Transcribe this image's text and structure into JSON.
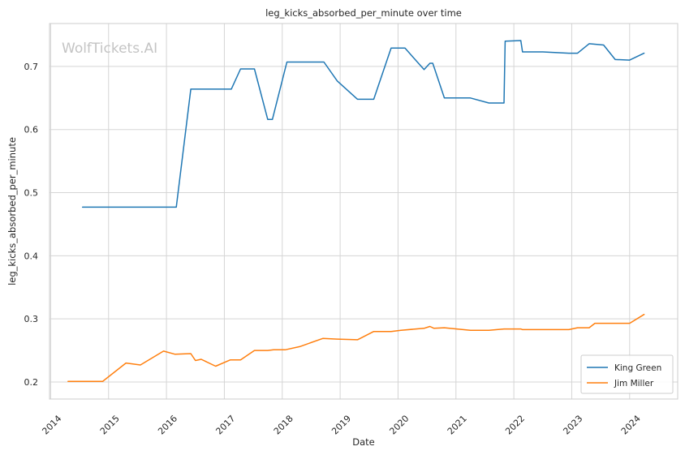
{
  "chart_data": {
    "type": "line",
    "title": "leg_kicks_absorbed_per_minute over time",
    "xlabel": "Date",
    "ylabel": "leg_kicks_absorbed_per_minute",
    "watermark": "WolfTickets.AI",
    "xlim": [
      2013.98,
      2024.83
    ],
    "ylim": [
      0.173,
      0.768
    ],
    "x_ticks": [
      2014,
      2015,
      2016,
      2017,
      2018,
      2019,
      2020,
      2021,
      2022,
      2023,
      2024
    ],
    "x_tick_labels": [
      "2014",
      "2015",
      "2016",
      "2017",
      "2018",
      "2019",
      "2020",
      "2021",
      "2022",
      "2023",
      "2024"
    ],
    "y_ticks": [
      0.2,
      0.3,
      0.4,
      0.5,
      0.6,
      0.7
    ],
    "y_tick_labels": [
      "0.2",
      "0.3",
      "0.4",
      "0.5",
      "0.6",
      "0.7"
    ],
    "grid": true,
    "legend_position": "lower-right",
    "series": [
      {
        "name": "King Green",
        "color": "#1f77b4",
        "x": [
          2014.55,
          2016.17,
          2016.42,
          2017.12,
          2017.28,
          2017.52,
          2017.75,
          2017.83,
          2018.08,
          2018.25,
          2018.72,
          2018.95,
          2019.3,
          2019.58,
          2019.88,
          2020.12,
          2020.45,
          2020.55,
          2020.6,
          2020.8,
          2021.25,
          2021.57,
          2021.83,
          2021.85,
          2022.12,
          2022.15,
          2022.5,
          2022.95,
          2023.1,
          2023.3,
          2023.55,
          2023.75,
          2024.0,
          2024.25
        ],
        "y": [
          0.477,
          0.477,
          0.664,
          0.664,
          0.696,
          0.696,
          0.616,
          0.616,
          0.707,
          0.707,
          0.707,
          0.677,
          0.648,
          0.648,
          0.729,
          0.729,
          0.695,
          0.705,
          0.705,
          0.65,
          0.65,
          0.642,
          0.642,
          0.74,
          0.741,
          0.723,
          0.723,
          0.721,
          0.721,
          0.736,
          0.734,
          0.711,
          0.71,
          0.721
        ]
      },
      {
        "name": "Jim Miller",
        "color": "#ff7f0e",
        "x": [
          2014.3,
          2014.9,
          2015.3,
          2015.55,
          2015.95,
          2016.15,
          2016.42,
          2016.5,
          2016.6,
          2016.85,
          2017.1,
          2017.28,
          2017.52,
          2017.75,
          2017.85,
          2018.05,
          2018.3,
          2018.7,
          2018.95,
          2019.3,
          2019.58,
          2019.88,
          2020.05,
          2020.45,
          2020.55,
          2020.62,
          2020.8,
          2021.25,
          2021.57,
          2021.83,
          2022.12,
          2022.15,
          2022.5,
          2022.95,
          2023.1,
          2023.3,
          2023.4,
          2023.75,
          2024.0,
          2024.25
        ],
        "y": [
          0.201,
          0.201,
          0.23,
          0.227,
          0.249,
          0.244,
          0.245,
          0.234,
          0.236,
          0.225,
          0.235,
          0.235,
          0.25,
          0.25,
          0.251,
          0.251,
          0.256,
          0.269,
          0.268,
          0.267,
          0.28,
          0.28,
          0.282,
          0.285,
          0.288,
          0.285,
          0.286,
          0.282,
          0.282,
          0.284,
          0.284,
          0.283,
          0.283,
          0.283,
          0.286,
          0.286,
          0.293,
          0.293,
          0.293,
          0.307
        ]
      }
    ]
  }
}
